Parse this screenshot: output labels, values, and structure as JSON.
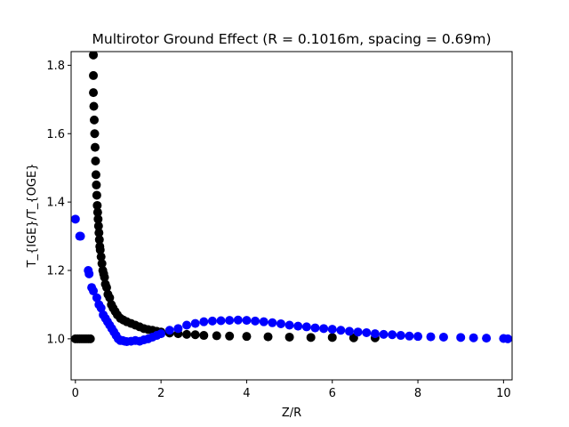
{
  "chart_data": {
    "type": "scatter",
    "title": "Multirotor Ground Effect (R = 0.1016m, spacing = 0.69m)",
    "xlabel": "Z/R",
    "ylabel": "T_{IGE}/T_{OGE}",
    "xlim": [
      -0.1,
      10.2
    ],
    "ylim": [
      0.88,
      1.84
    ],
    "xticks": [
      0,
      2,
      4,
      6,
      8,
      10
    ],
    "yticks": [
      1.0,
      1.2,
      1.4,
      1.6,
      1.8
    ],
    "xtick_labels": [
      "0",
      "2",
      "4",
      "6",
      "8",
      "10"
    ],
    "ytick_labels": [
      "1.0",
      "1.2",
      "1.4",
      "1.6",
      "1.8"
    ],
    "grid": false,
    "series": [
      {
        "color": "#000000",
        "x": [
          0.0,
          0.05,
          0.1,
          0.15,
          0.2,
          0.25,
          0.3,
          0.35,
          0.42,
          0.42,
          0.42,
          0.43,
          0.44,
          0.45,
          0.46,
          0.47,
          0.48,
          0.49,
          0.5,
          0.51,
          0.52,
          0.53,
          0.54,
          0.55,
          0.56,
          0.57,
          0.58,
          0.6,
          0.62,
          0.64,
          0.66,
          0.68,
          0.7,
          0.73,
          0.76,
          0.8,
          0.84,
          0.88,
          0.93,
          0.98,
          1.05,
          1.12,
          1.2,
          1.3,
          1.4,
          1.5,
          1.6,
          1.7,
          1.8,
          1.9,
          2.0,
          2.2,
          2.4,
          2.6,
          2.8,
          3.0,
          3.3,
          3.6,
          4.0,
          4.5,
          5.0,
          5.5,
          6.0,
          6.5,
          7.0
        ],
        "y": [
          1.0,
          1.0,
          1.0,
          1.0,
          1.0,
          1.0,
          1.0,
          1.0,
          1.83,
          1.77,
          1.72,
          1.68,
          1.64,
          1.6,
          1.56,
          1.52,
          1.48,
          1.45,
          1.42,
          1.39,
          1.37,
          1.35,
          1.33,
          1.31,
          1.29,
          1.27,
          1.26,
          1.24,
          1.22,
          1.2,
          1.19,
          1.18,
          1.16,
          1.15,
          1.13,
          1.12,
          1.1,
          1.09,
          1.08,
          1.07,
          1.06,
          1.055,
          1.05,
          1.045,
          1.04,
          1.035,
          1.03,
          1.027,
          1.025,
          1.022,
          1.02,
          1.017,
          1.015,
          1.013,
          1.012,
          1.01,
          1.009,
          1.008,
          1.007,
          1.006,
          1.005,
          1.004,
          1.004,
          1.003,
          1.003
        ]
      },
      {
        "color": "#0000ff",
        "x": [
          0.0,
          0.1,
          0.12,
          0.3,
          0.32,
          0.38,
          0.42,
          0.5,
          0.55,
          0.6,
          0.65,
          0.7,
          0.75,
          0.8,
          0.85,
          0.9,
          0.95,
          1.0,
          1.05,
          1.1,
          1.15,
          1.2,
          1.3,
          1.4,
          1.5,
          1.6,
          1.7,
          1.8,
          1.9,
          2.0,
          2.2,
          2.4,
          2.6,
          2.8,
          3.0,
          3.2,
          3.4,
          3.6,
          3.8,
          4.0,
          4.2,
          4.4,
          4.6,
          4.8,
          5.0,
          5.2,
          5.4,
          5.6,
          5.8,
          6.0,
          6.2,
          6.4,
          6.6,
          6.8,
          7.0,
          7.2,
          7.4,
          7.6,
          7.8,
          8.0,
          8.3,
          8.6,
          9.0,
          9.3,
          9.6,
          10.0,
          10.1
        ],
        "y": [
          1.35,
          1.3,
          1.3,
          1.2,
          1.19,
          1.15,
          1.14,
          1.12,
          1.1,
          1.09,
          1.07,
          1.06,
          1.05,
          1.04,
          1.03,
          1.02,
          1.01,
          1.0,
          0.995,
          0.995,
          0.993,
          0.992,
          0.993,
          0.995,
          0.993,
          0.997,
          1.0,
          1.005,
          1.01,
          1.015,
          1.025,
          1.03,
          1.04,
          1.045,
          1.05,
          1.052,
          1.053,
          1.054,
          1.055,
          1.054,
          1.052,
          1.05,
          1.047,
          1.044,
          1.04,
          1.037,
          1.035,
          1.032,
          1.03,
          1.028,
          1.025,
          1.022,
          1.02,
          1.018,
          1.015,
          1.013,
          1.012,
          1.01,
          1.008,
          1.007,
          1.006,
          1.005,
          1.004,
          1.003,
          1.002,
          1.001,
          1.0
        ]
      }
    ]
  }
}
